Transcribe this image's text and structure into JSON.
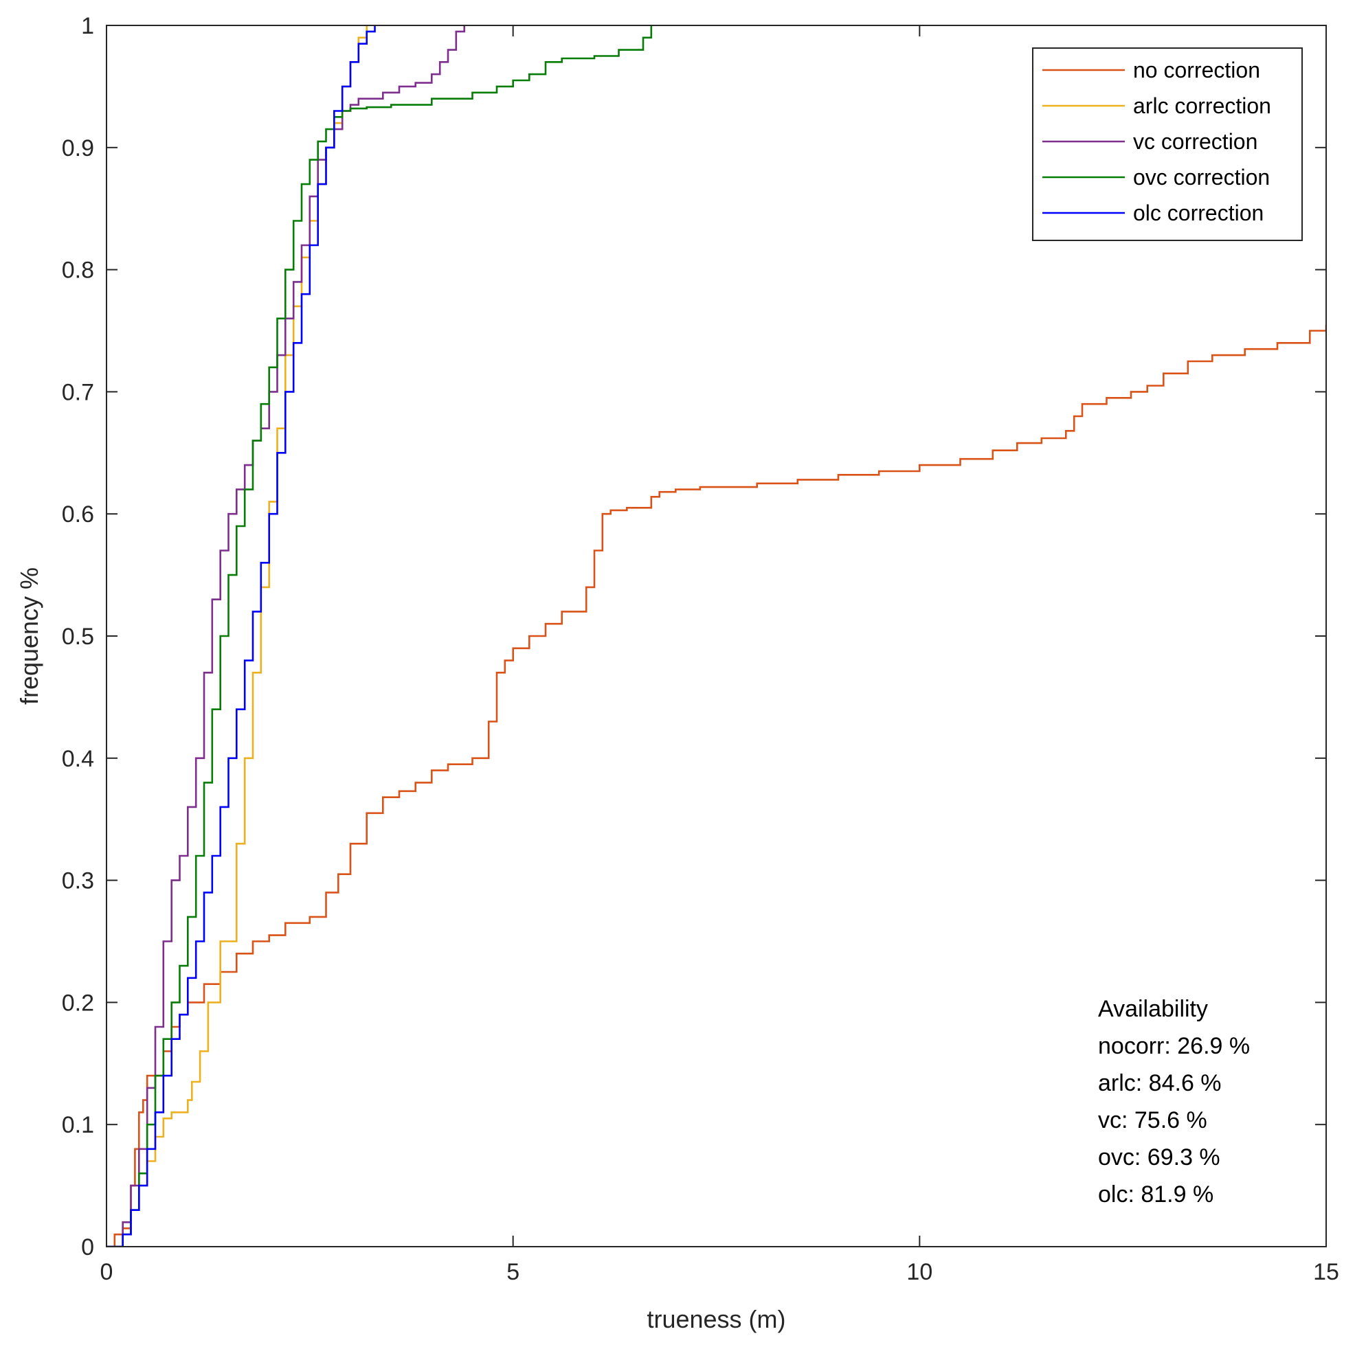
{
  "chart_data": {
    "type": "line",
    "xlabel": "trueness (m)",
    "ylabel": "frequency %",
    "xlim": [
      0,
      15
    ],
    "ylim": [
      0,
      1
    ],
    "xticks": [
      0,
      5,
      10,
      15
    ],
    "yticks": [
      0,
      0.1,
      0.2,
      0.3,
      0.4,
      0.5,
      0.6,
      0.7,
      0.8,
      0.9,
      1
    ],
    "grid": false,
    "legend_position": "top-right",
    "series": [
      {
        "name": "no correction",
        "color": "#D95319",
        "x": [
          0,
          0.1,
          0.2,
          0.3,
          0.35,
          0.4,
          0.45,
          0.5,
          0.6,
          0.7,
          0.8,
          0.9,
          1.0,
          1.2,
          1.4,
          1.6,
          1.8,
          2.0,
          2.2,
          2.5,
          2.7,
          2.85,
          3.0,
          3.2,
          3.4,
          3.6,
          3.8,
          4.0,
          4.2,
          4.5,
          4.7,
          4.8,
          4.9,
          5.0,
          5.2,
          5.4,
          5.6,
          5.9,
          6.0,
          6.1,
          6.2,
          6.4,
          6.7,
          6.8,
          7.0,
          7.3,
          8.0,
          8.5,
          9.0,
          9.5,
          10.0,
          10.5,
          10.9,
          11.2,
          11.5,
          11.8,
          11.9,
          12.0,
          12.3,
          12.6,
          12.8,
          13.0,
          13.3,
          13.6,
          14.0,
          14.4,
          14.8,
          15.0
        ],
        "y": [
          0,
          0.01,
          0.015,
          0.05,
          0.08,
          0.11,
          0.12,
          0.14,
          0.14,
          0.16,
          0.18,
          0.19,
          0.2,
          0.215,
          0.225,
          0.24,
          0.25,
          0.255,
          0.265,
          0.27,
          0.29,
          0.305,
          0.33,
          0.355,
          0.368,
          0.373,
          0.38,
          0.39,
          0.395,
          0.4,
          0.43,
          0.47,
          0.48,
          0.49,
          0.5,
          0.51,
          0.52,
          0.54,
          0.57,
          0.6,
          0.603,
          0.605,
          0.614,
          0.618,
          0.62,
          0.622,
          0.625,
          0.628,
          0.632,
          0.635,
          0.64,
          0.645,
          0.652,
          0.658,
          0.662,
          0.668,
          0.68,
          0.69,
          0.695,
          0.7,
          0.705,
          0.715,
          0.725,
          0.73,
          0.735,
          0.74,
          0.75,
          0.755
        ]
      },
      {
        "name": "arlc correction",
        "color": "#EDB120",
        "x": [
          0,
          0.2,
          0.3,
          0.4,
          0.5,
          0.6,
          0.7,
          0.8,
          1.0,
          1.05,
          1.15,
          1.25,
          1.4,
          1.6,
          1.7,
          1.8,
          1.9,
          2.0,
          2.1,
          2.2,
          2.3,
          2.4,
          2.5,
          2.6,
          2.7,
          2.8,
          2.9,
          3.0,
          3.1,
          3.2
        ],
        "y": [
          0,
          0.01,
          0.03,
          0.05,
          0.07,
          0.09,
          0.105,
          0.11,
          0.12,
          0.135,
          0.16,
          0.2,
          0.25,
          0.33,
          0.4,
          0.47,
          0.54,
          0.61,
          0.67,
          0.73,
          0.77,
          0.81,
          0.84,
          0.87,
          0.9,
          0.92,
          0.95,
          0.97,
          0.99,
          1.0
        ]
      },
      {
        "name": "vc correction",
        "color": "#7E2F8E",
        "x": [
          0,
          0.2,
          0.3,
          0.4,
          0.5,
          0.6,
          0.7,
          0.8,
          0.9,
          1.0,
          1.1,
          1.2,
          1.3,
          1.4,
          1.5,
          1.6,
          1.7,
          1.8,
          1.9,
          2.0,
          2.1,
          2.2,
          2.3,
          2.4,
          2.5,
          2.6,
          2.7,
          2.8,
          2.9,
          3.0,
          3.1,
          3.4,
          3.6,
          3.8,
          4.0,
          4.1,
          4.2,
          4.3,
          4.4
        ],
        "y": [
          0,
          0.02,
          0.05,
          0.08,
          0.13,
          0.18,
          0.25,
          0.3,
          0.32,
          0.36,
          0.4,
          0.47,
          0.53,
          0.57,
          0.6,
          0.62,
          0.64,
          0.66,
          0.67,
          0.7,
          0.73,
          0.76,
          0.79,
          0.82,
          0.86,
          0.89,
          0.9,
          0.915,
          0.93,
          0.935,
          0.94,
          0.945,
          0.95,
          0.953,
          0.96,
          0.97,
          0.98,
          0.995,
          1.0
        ]
      },
      {
        "name": "ovc correction",
        "color": "#077C07",
        "x": [
          0,
          0.2,
          0.3,
          0.4,
          0.5,
          0.6,
          0.7,
          0.8,
          0.9,
          1.0,
          1.1,
          1.2,
          1.3,
          1.4,
          1.5,
          1.6,
          1.7,
          1.8,
          1.9,
          2.0,
          2.1,
          2.2,
          2.3,
          2.4,
          2.5,
          2.6,
          2.7,
          2.8,
          2.9,
          3.0,
          3.2,
          3.5,
          4.0,
          4.5,
          4.8,
          5.0,
          5.2,
          5.4,
          5.6,
          6.0,
          6.3,
          6.6,
          6.7
        ],
        "y": [
          0,
          0.01,
          0.03,
          0.06,
          0.1,
          0.14,
          0.17,
          0.2,
          0.23,
          0.27,
          0.32,
          0.38,
          0.44,
          0.5,
          0.55,
          0.59,
          0.62,
          0.66,
          0.69,
          0.72,
          0.76,
          0.8,
          0.84,
          0.87,
          0.89,
          0.905,
          0.915,
          0.925,
          0.93,
          0.932,
          0.933,
          0.935,
          0.94,
          0.945,
          0.95,
          0.955,
          0.96,
          0.97,
          0.973,
          0.975,
          0.98,
          0.99,
          1.0
        ]
      },
      {
        "name": "olc correction",
        "color": "#0000FF",
        "x": [
          0,
          0.2,
          0.3,
          0.4,
          0.5,
          0.6,
          0.7,
          0.8,
          0.9,
          1.0,
          1.1,
          1.2,
          1.3,
          1.4,
          1.5,
          1.6,
          1.7,
          1.8,
          1.9,
          2.0,
          2.1,
          2.2,
          2.3,
          2.4,
          2.5,
          2.6,
          2.7,
          2.8,
          2.9,
          3.0,
          3.1,
          3.2,
          3.3
        ],
        "y": [
          0,
          0.01,
          0.03,
          0.05,
          0.08,
          0.11,
          0.14,
          0.17,
          0.19,
          0.22,
          0.25,
          0.29,
          0.32,
          0.36,
          0.4,
          0.44,
          0.48,
          0.52,
          0.56,
          0.6,
          0.65,
          0.7,
          0.74,
          0.78,
          0.82,
          0.87,
          0.9,
          0.93,
          0.95,
          0.97,
          0.985,
          0.995,
          1.0
        ]
      }
    ],
    "annotation": {
      "title": "Availability",
      "lines": [
        "nocorr: 26.9 %",
        "arlc: 84.6 %",
        "vc: 75.6 %",
        "ovc: 69.3 %",
        "olc: 81.9 %"
      ],
      "position": "bottom-right"
    }
  }
}
